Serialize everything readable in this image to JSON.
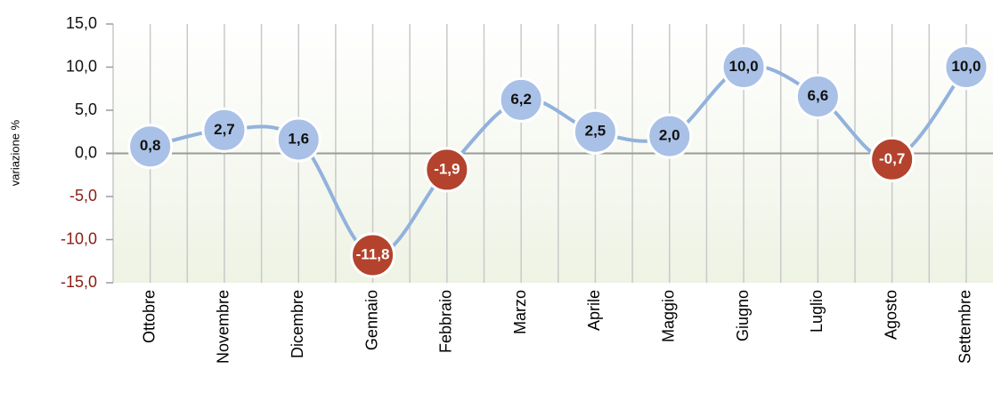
{
  "chart_data": {
    "type": "line",
    "y_label": "variazione %",
    "categories": [
      "Ottobre",
      "Novembre",
      "Dicembre",
      "Gennaio",
      "Febbraio",
      "Marzo",
      "Aprile",
      "Maggio",
      "Giugno",
      "Luglio",
      "Agosto",
      "Settembre"
    ],
    "values": [
      0.8,
      2.7,
      1.6,
      -11.8,
      -1.9,
      6.2,
      2.5,
      2.0,
      10.0,
      6.6,
      -0.7,
      10.0
    ],
    "value_labels": [
      "0,8",
      "2,7",
      "1,6",
      "-11,8",
      "-1,9",
      "6,2",
      "2,5",
      "2,0",
      "10,0",
      "6,6",
      "-0,7",
      "10,0"
    ],
    "color": "#a9c1e6",
    "negative_color": "#b3432c",
    "line_color": "#92b2dd",
    "negative_tick_color": "#8b1c14",
    "ylim": [
      -15,
      15
    ],
    "yticks": [
      {
        "value": -15,
        "label": "-15,0"
      },
      {
        "value": -10,
        "label": "-10,0"
      },
      {
        "value": -5,
        "label": "-5,0"
      },
      {
        "value": 0,
        "label": "0,0"
      },
      {
        "value": 5,
        "label": "5,0"
      },
      {
        "value": 10,
        "label": "10,0"
      },
      {
        "value": 15,
        "label": "15,0"
      }
    ],
    "grid": true
  }
}
